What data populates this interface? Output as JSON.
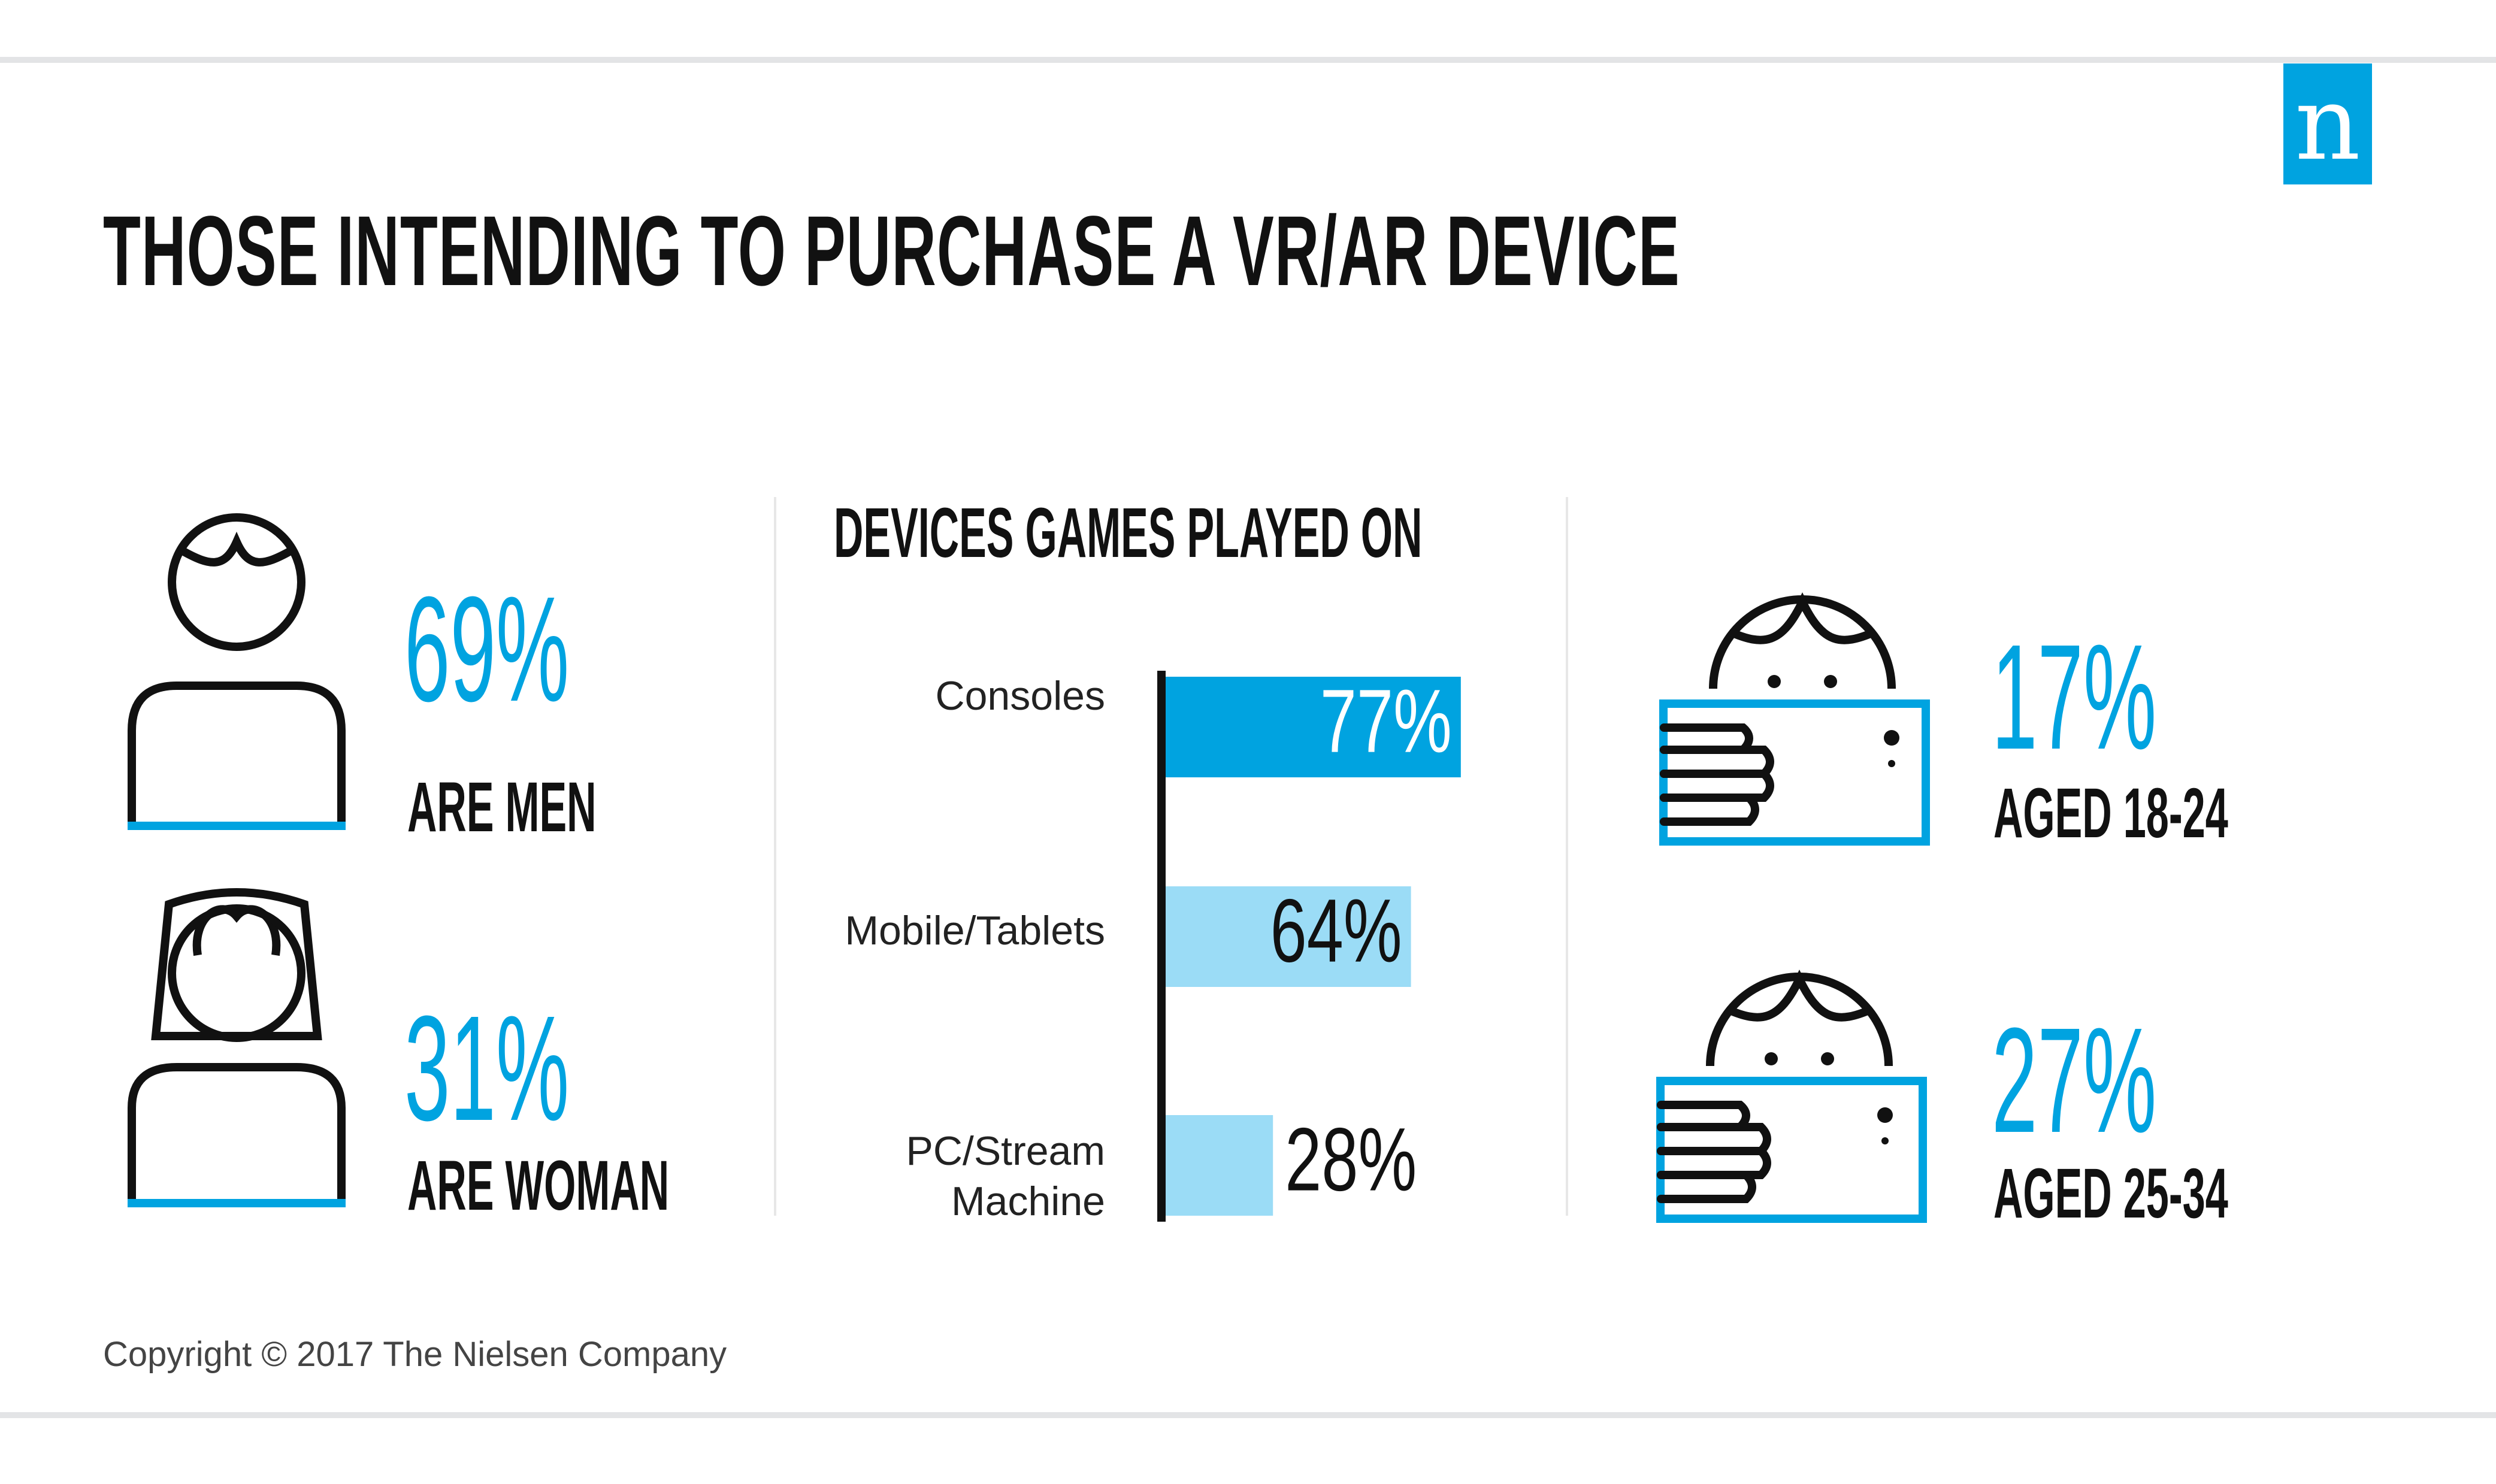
{
  "title": "THOSE INTENDING TO PURCHASE A VR/AR DEVICE",
  "logo": {
    "letter": "n"
  },
  "colors": {
    "accent": "#00a3e0",
    "accent_light": "#9bdcf6",
    "text": "#111111",
    "rule": "#e3e4e6"
  },
  "gender": {
    "men": {
      "pct": "69%",
      "label": "ARE MEN",
      "icon": "man-person-icon"
    },
    "women": {
      "pct": "31%",
      "label": "ARE WOMAN",
      "icon": "woman-person-icon"
    }
  },
  "ages": {
    "young": {
      "pct": "17%",
      "label": "AGED 18-24",
      "icon": "child-with-tablet-icon"
    },
    "older": {
      "pct": "27%",
      "label": "AGED 25-34",
      "icon": "child-with-tablet-icon"
    }
  },
  "chart_data": {
    "type": "bar",
    "orientation": "horizontal",
    "title": "DEVICES GAMES PLAYED ON",
    "categories": [
      "Consoles",
      "Mobile/Tablets",
      "PC/Stream Machine"
    ],
    "values": [
      77,
      64,
      28
    ],
    "value_labels": [
      "77%",
      "64%",
      "28%"
    ],
    "unit": "%",
    "xlim": [
      0,
      100
    ],
    "grid": false,
    "legend": "none"
  },
  "footer": {
    "copyright": "Copyright © 2017 The Nielsen Company"
  }
}
